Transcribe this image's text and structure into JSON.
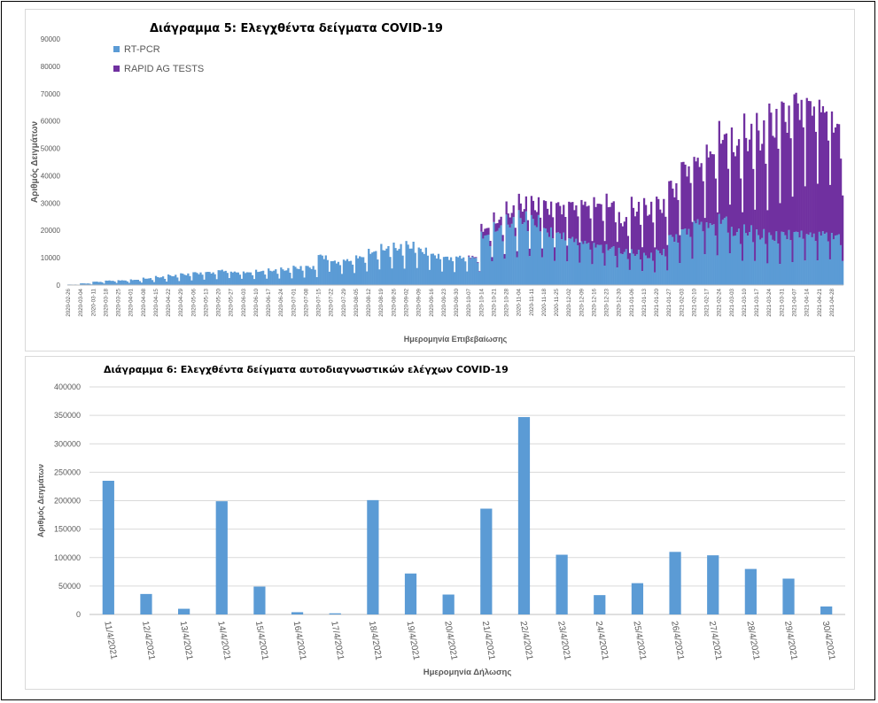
{
  "chart_data": [
    {
      "type": "bar",
      "stacked": true,
      "title": "Διάγραμμα 5: Ελεγχθέντα δείγματα COVID-19",
      "xlabel": "Ημερομηνία Επιβεβαίωσης",
      "ylabel": "Αριθμός Δειγμάτων",
      "ylim": [
        0,
        90000
      ],
      "yticks": [
        "0",
        "10000",
        "20000",
        "30000",
        "40000",
        "50000",
        "60000",
        "70000",
        "80000",
        "90000"
      ],
      "grid": false,
      "legend_position": "top-left",
      "x_tick_labels": [
        "2020-02-26",
        "2020-03-04",
        "2020-03-11",
        "2020-03-18",
        "2020-03-25",
        "2020-04-01",
        "2020-04-08",
        "2020-04-15",
        "2020-04-22",
        "2020-04-29",
        "2020-05-06",
        "2020-05-13",
        "2020-05-20",
        "2020-05-27",
        "2020-06-03",
        "2020-06-10",
        "2020-06-17",
        "2020-06-24",
        "2020-07-01",
        "2020-07-08",
        "2020-07-15",
        "2020-07-22",
        "2020-07-29",
        "2020-08-05",
        "2020-08-12",
        "2020-08-19",
        "2020-08-26",
        "2020-09-02",
        "2020-09-09",
        "2020-09-16",
        "2020-09-23",
        "2020-09-30",
        "2020-10-07",
        "2020-10-14",
        "2020-10-21",
        "2020-10-28",
        "2020-11-04",
        "2020-11-11",
        "2020-11-18",
        "2020-11-25",
        "2020-12-02",
        "2020-12-09",
        "2020-12-16",
        "2020-12-23",
        "2020-12-30",
        "2021-01-06",
        "2021-01-13",
        "2021-01-20",
        "2021-01-27",
        "2021-02-03",
        "2021-02-10",
        "2021-02-17",
        "2021-02-24",
        "2021-03-03",
        "2021-03-10",
        "2021-03-17",
        "2021-03-24",
        "2021-03-31",
        "2021-04-07",
        "2021-04-14",
        "2021-04-21",
        "2021-04-28"
      ],
      "series": [
        {
          "name": "RT-PCR",
          "color": "#5b9bd5",
          "weekly_values": [
            200,
            600,
            1200,
            1600,
            1700,
            1900,
            2400,
            2900,
            3400,
            3900,
            4400,
            4600,
            5300,
            4700,
            4600,
            5000,
            5300,
            5600,
            6300,
            6500,
            10500,
            8500,
            9000,
            10200,
            12000,
            13200,
            13500,
            14200,
            12500,
            10800,
            10000,
            10200,
            10000,
            18000,
            20500,
            22500,
            24000,
            23000,
            19500,
            18500,
            16800,
            15500,
            14500,
            13500,
            12000,
            11500,
            10500,
            12000,
            17500,
            20000,
            23000,
            22000,
            24000,
            19000,
            19500,
            18000,
            17500,
            18500,
            19000,
            18500,
            19000,
            18000
          ]
        },
        {
          "name": "RAPID AG TESTS",
          "color": "#7030a0",
          "weekly_values": [
            0,
            0,
            0,
            0,
            0,
            0,
            0,
            0,
            0,
            0,
            0,
            0,
            0,
            0,
            0,
            0,
            0,
            0,
            0,
            0,
            0,
            0,
            0,
            0,
            0,
            0,
            0,
            0,
            0,
            0,
            0,
            0,
            300,
            2500,
            3000,
            4000,
            5000,
            6000,
            9000,
            10000,
            12500,
            14000,
            15000,
            16000,
            11000,
            16000,
            17000,
            17000,
            18000,
            23000,
            22000,
            26000,
            30000,
            31000,
            34000,
            36000,
            41000,
            43000,
            47000,
            47000,
            45000,
            40000
          ]
        }
      ]
    },
    {
      "type": "bar",
      "title": "Διάγραμμα 6: Ελεγχθέντα δείγματα αυτοδιαγνωστικών ελέγχων COVID-19",
      "xlabel": "Ημερομηνία Δήλωσης",
      "ylabel": "Αριθμός Δειγμάτων",
      "ylim": [
        0,
        400000
      ],
      "yticks": [
        "0",
        "50000",
        "100000",
        "150000",
        "200000",
        "250000",
        "300000",
        "350000",
        "400000"
      ],
      "grid": true,
      "categories": [
        "11/4/2021",
        "12/4/2021",
        "13/4/2021",
        "14/4/2021",
        "15/4/2021",
        "16/4/2021",
        "17/4/2021",
        "18/4/2021",
        "19/4/2021",
        "20/4/2021",
        "21/4/2021",
        "22/4/2021",
        "23/4/2021",
        "24/4/2021",
        "25/4/2021",
        "26/4/2021",
        "27/4/2021",
        "28/4/2021",
        "29/4/2021",
        "30/4/2021"
      ],
      "values": [
        235000,
        36000,
        10000,
        199000,
        49000,
        4000,
        2000,
        201000,
        72000,
        35000,
        186000,
        347000,
        105000,
        34000,
        55000,
        110000,
        104000,
        80000,
        63000,
        14000
      ],
      "color": "#5b9bd5"
    }
  ]
}
